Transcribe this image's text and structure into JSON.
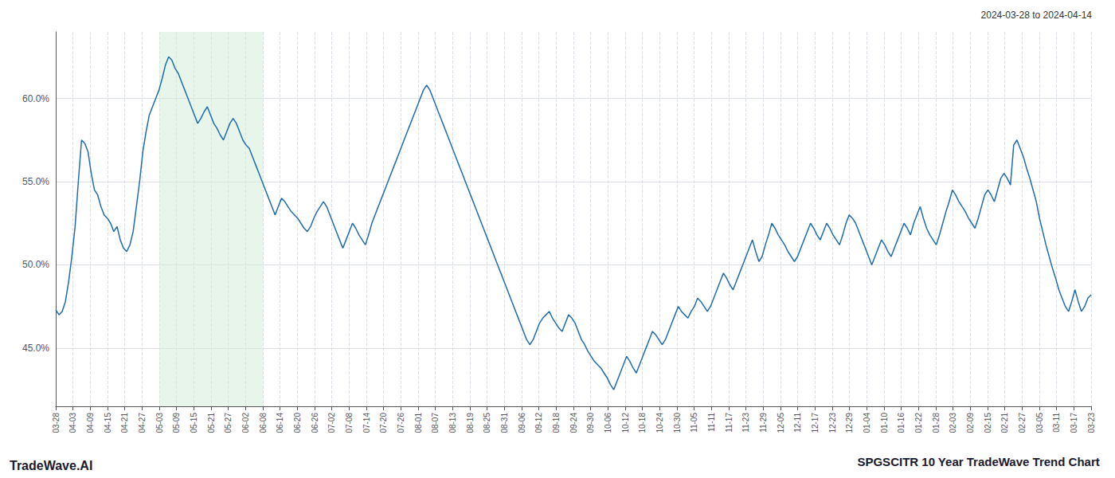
{
  "chart_data": {
    "type": "line",
    "title": "SPGSCITR 10 Year TradeWave Trend Chart",
    "subtitle": "2024-03-28 to 2024-04-14",
    "annotations": [
      "TradeWave.AI"
    ],
    "x": [
      0,
      1,
      2,
      3,
      4,
      5,
      6,
      7,
      8,
      9,
      10,
      11,
      12,
      13,
      14,
      15,
      16,
      17,
      18,
      19,
      20,
      21,
      22,
      23,
      24,
      25,
      26,
      27,
      28,
      29,
      30,
      31,
      32,
      33,
      34,
      35,
      36,
      37,
      38,
      39,
      40,
      41,
      42,
      43,
      44,
      45,
      46,
      47,
      48,
      49,
      50,
      51,
      52,
      53,
      54,
      55,
      56,
      57,
      58,
      59,
      60,
      61,
      62,
      63,
      64,
      65,
      66,
      67,
      68,
      69,
      70,
      71,
      72,
      73,
      74,
      75,
      76,
      77,
      78,
      79,
      80,
      81,
      82,
      83,
      84,
      85,
      86,
      87,
      88,
      89,
      90,
      91,
      92,
      93,
      94,
      95,
      96,
      97,
      98,
      99,
      100,
      101,
      102,
      103,
      104,
      105,
      106,
      107,
      108,
      109,
      110,
      111,
      112,
      113,
      114,
      115,
      116,
      117,
      118,
      119,
      120,
      121,
      122,
      123,
      124,
      125,
      126,
      127,
      128,
      129,
      130,
      131,
      132,
      133,
      134,
      135,
      136,
      137,
      138,
      139,
      140,
      141,
      142,
      143,
      144,
      145,
      146,
      147,
      148,
      149,
      150,
      151,
      152,
      153,
      154,
      155,
      156,
      157,
      158,
      159,
      160,
      161,
      162,
      163,
      164,
      165,
      166,
      167,
      168,
      169,
      170,
      171,
      172,
      173,
      174,
      175,
      176,
      177,
      178,
      179,
      180,
      181,
      182,
      183,
      184,
      185,
      186,
      187,
      188,
      189,
      190,
      191,
      192,
      193,
      194,
      195,
      196,
      197,
      198,
      199,
      200,
      201,
      202,
      203,
      204,
      205,
      206,
      207,
      208,
      209,
      210,
      211,
      212,
      213,
      214,
      215,
      216,
      217,
      218,
      219,
      220,
      221,
      222,
      223,
      224,
      225,
      226,
      227,
      228,
      229,
      230,
      231,
      232,
      233,
      234,
      235,
      236,
      237,
      238,
      239,
      240,
      241,
      242,
      243,
      244,
      245,
      246,
      247,
      248,
      249,
      250,
      251,
      252,
      253,
      254,
      255,
      256,
      257,
      258,
      259,
      260,
      261,
      262,
      263,
      264,
      265,
      266,
      267,
      268,
      269,
      270,
      271,
      272,
      273,
      274,
      275,
      276,
      277,
      278,
      279,
      280,
      281,
      282,
      283,
      284,
      285,
      286,
      287,
      288,
      289,
      290,
      291,
      292,
      293,
      294,
      295,
      296,
      297,
      298,
      299,
      300,
      301,
      302,
      303,
      304,
      305,
      306,
      307,
      308,
      309,
      310,
      311,
      312,
      313,
      314,
      315,
      316,
      317,
      318,
      319,
      320,
      321
    ],
    "values": [
      47.3,
      47.0,
      47.2,
      47.8,
      49.0,
      50.5,
      52.3,
      55.0,
      57.5,
      57.3,
      56.8,
      55.5,
      54.5,
      54.2,
      53.5,
      53.0,
      52.8,
      52.5,
      52.0,
      52.3,
      51.5,
      51.0,
      50.8,
      51.2,
      52.0,
      53.5,
      55.0,
      56.8,
      58.0,
      59.0,
      59.5,
      60.0,
      60.5,
      61.2,
      62.0,
      62.5,
      62.3,
      61.8,
      61.5,
      61.0,
      60.5,
      60.0,
      59.5,
      59.0,
      58.5,
      58.8,
      59.2,
      59.5,
      59.0,
      58.5,
      58.2,
      57.8,
      57.5,
      58.0,
      58.5,
      58.8,
      58.5,
      58.0,
      57.5,
      57.2,
      57.0,
      56.5,
      56.0,
      55.5,
      55.0,
      54.5,
      54.0,
      53.5,
      53.0,
      53.5,
      54.0,
      53.8,
      53.5,
      53.2,
      53.0,
      52.8,
      52.5,
      52.2,
      52.0,
      52.3,
      52.8,
      53.2,
      53.5,
      53.8,
      53.5,
      53.0,
      52.5,
      52.0,
      51.5,
      51.0,
      51.5,
      52.0,
      52.5,
      52.2,
      51.8,
      51.5,
      51.2,
      51.8,
      52.5,
      53.0,
      53.5,
      54.0,
      54.5,
      55.0,
      55.5,
      56.0,
      56.5,
      57.0,
      57.5,
      58.0,
      58.5,
      59.0,
      59.5,
      60.0,
      60.5,
      60.8,
      60.5,
      60.0,
      59.5,
      59.0,
      58.5,
      58.0,
      57.5,
      57.0,
      56.5,
      56.0,
      55.5,
      55.0,
      54.5,
      54.0,
      53.5,
      53.0,
      52.5,
      52.0,
      51.5,
      51.0,
      50.5,
      50.0,
      49.5,
      49.0,
      48.5,
      48.0,
      47.5,
      47.0,
      46.5,
      46.0,
      45.5,
      45.2,
      45.5,
      46.0,
      46.5,
      46.8,
      47.0,
      47.2,
      46.8,
      46.5,
      46.2,
      46.0,
      46.5,
      47.0,
      46.8,
      46.5,
      46.0,
      45.5,
      45.2,
      44.8,
      44.5,
      44.2,
      44.0,
      43.8,
      43.5,
      43.2,
      42.8,
      42.5,
      43.0,
      43.5,
      44.0,
      44.5,
      44.2,
      43.8,
      43.5,
      44.0,
      44.5,
      45.0,
      45.5,
      46.0,
      45.8,
      45.5,
      45.2,
      45.5,
      46.0,
      46.5,
      47.0,
      47.5,
      47.2,
      47.0,
      46.8,
      47.2,
      47.5,
      48.0,
      47.8,
      47.5,
      47.2,
      47.5,
      48.0,
      48.5,
      49.0,
      49.5,
      49.2,
      48.8,
      48.5,
      49.0,
      49.5,
      50.0,
      50.5,
      51.0,
      51.5,
      50.8,
      50.2,
      50.5,
      51.2,
      51.8,
      52.5,
      52.2,
      51.8,
      51.5,
      51.2,
      50.8,
      50.5,
      50.2,
      50.5,
      51.0,
      51.5,
      52.0,
      52.5,
      52.2,
      51.8,
      51.5,
      52.0,
      52.5,
      52.2,
      51.8,
      51.5,
      51.2,
      51.8,
      52.5,
      53.0,
      52.8,
      52.5,
      52.0,
      51.5,
      51.0,
      50.5,
      50.0,
      50.5,
      51.0,
      51.5,
      51.2,
      50.8,
      50.5,
      51.0,
      51.5,
      52.0,
      52.5,
      52.2,
      51.8,
      52.5,
      53.0,
      53.5,
      52.8,
      52.2,
      51.8,
      51.5,
      51.2,
      51.8,
      52.5,
      53.2,
      53.8,
      54.5,
      54.2,
      53.8,
      53.5,
      53.2,
      52.8,
      52.5,
      52.2,
      52.8,
      53.5,
      54.2,
      54.5,
      54.2,
      53.8,
      54.5,
      55.2,
      55.5,
      55.2,
      54.8,
      57.2,
      57.5,
      57.0,
      56.5,
      55.8,
      55.2,
      54.5,
      53.8,
      52.8,
      52.0,
      51.2,
      50.5,
      49.8,
      49.2,
      48.5,
      48.0,
      47.5,
      47.2,
      47.8,
      48.5,
      47.8,
      47.2,
      47.5,
      48.0,
      48.2
    ],
    "color": "#1f6cb0",
    "xlim": [
      0,
      321
    ],
    "xticks": [
      {
        "value": 0,
        "label": "03-28"
      },
      {
        "value": 5.35,
        "label": "04-03"
      },
      {
        "value": 10.7,
        "label": "04-09"
      },
      {
        "value": 16.05,
        "label": "04-15"
      },
      {
        "value": 21.4,
        "label": "04-21"
      },
      {
        "value": 26.75,
        "label": "04-27"
      },
      {
        "value": 32.1,
        "label": "05-03"
      },
      {
        "value": 37.45,
        "label": "05-09"
      },
      {
        "value": 42.8,
        "label": "05-15"
      },
      {
        "value": 48.15,
        "label": "05-21"
      },
      {
        "value": 53.5,
        "label": "05-27"
      },
      {
        "value": 58.85,
        "label": "06-02"
      },
      {
        "value": 64.2,
        "label": "06-08"
      },
      {
        "value": 69.55,
        "label": "06-14"
      },
      {
        "value": 74.9,
        "label": "06-20"
      },
      {
        "value": 80.25,
        "label": "06-26"
      },
      {
        "value": 85.6,
        "label": "07-02"
      },
      {
        "value": 90.95,
        "label": "07-08"
      },
      {
        "value": 96.3,
        "label": "07-14"
      },
      {
        "value": 101.65,
        "label": "07-20"
      },
      {
        "value": 107,
        "label": "07-26"
      },
      {
        "value": 112.35,
        "label": "08-01"
      },
      {
        "value": 117.7,
        "label": "08-07"
      },
      {
        "value": 123.05,
        "label": "08-13"
      },
      {
        "value": 128.4,
        "label": "08-19"
      },
      {
        "value": 133.75,
        "label": "08-25"
      },
      {
        "value": 139.1,
        "label": "08-31"
      },
      {
        "value": 144.45,
        "label": "09-06"
      },
      {
        "value": 149.8,
        "label": "09-12"
      },
      {
        "value": 155.15,
        "label": "09-18"
      },
      {
        "value": 160.5,
        "label": "09-24"
      },
      {
        "value": 165.85,
        "label": "09-30"
      },
      {
        "value": 171.2,
        "label": "10-06"
      },
      {
        "value": 176.55,
        "label": "10-12"
      },
      {
        "value": 181.9,
        "label": "10-18"
      },
      {
        "value": 187.25,
        "label": "10-24"
      },
      {
        "value": 192.6,
        "label": "10-30"
      },
      {
        "value": 197.95,
        "label": "11-05"
      },
      {
        "value": 203.3,
        "label": "11-11"
      },
      {
        "value": 208.65,
        "label": "11-17"
      },
      {
        "value": 214,
        "label": "11-23"
      },
      {
        "value": 219.35,
        "label": "11-29"
      },
      {
        "value": 224.7,
        "label": "12-05"
      },
      {
        "value": 230.05,
        "label": "12-11"
      },
      {
        "value": 235.4,
        "label": "12-17"
      },
      {
        "value": 240.75,
        "label": "12-23"
      },
      {
        "value": 246.1,
        "label": "12-29"
      },
      {
        "value": 251.45,
        "label": "01-04"
      },
      {
        "value": 256.8,
        "label": "01-10"
      },
      {
        "value": 262.15,
        "label": "01-16"
      },
      {
        "value": 267.5,
        "label": "01-22"
      },
      {
        "value": 272.85,
        "label": "01-28"
      },
      {
        "value": 278.2,
        "label": "02-03"
      },
      {
        "value": 283.55,
        "label": "02-09"
      },
      {
        "value": 288.9,
        "label": "02-15"
      },
      {
        "value": 294.25,
        "label": "02-21"
      },
      {
        "value": 299.6,
        "label": "02-27"
      },
      {
        "value": 304.95,
        "label": "03-05"
      },
      {
        "value": 310.3,
        "label": "03-11"
      },
      {
        "value": 315.65,
        "label": "03-17"
      },
      {
        "value": 321,
        "label": "03-23"
      }
    ],
    "ylim": [
      41.5,
      64.0
    ],
    "yticks": [
      {
        "value": 45.0,
        "label": "45.0%"
      },
      {
        "value": 50.0,
        "label": "50.0%"
      },
      {
        "value": 55.0,
        "label": "55.0%"
      },
      {
        "value": 60.0,
        "label": "60.0%"
      }
    ],
    "grid": true,
    "shaded_region": {
      "x": [
        32.1,
        64.2
      ],
      "color": "#d4edda"
    }
  }
}
